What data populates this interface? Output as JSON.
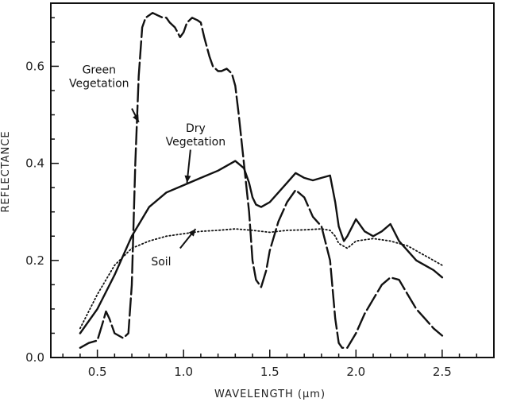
{
  "chart_data": {
    "type": "line",
    "title": "",
    "xlabel": "WAVELENGTH  (µm)",
    "ylabel": "REFLECTANCE",
    "xlim": [
      0.23,
      2.8
    ],
    "ylim": [
      0.0,
      0.73
    ],
    "xticks": [
      0.5,
      1.0,
      1.5,
      2.0,
      2.5
    ],
    "xtick_labels": [
      "0.5",
      "1.0",
      "1.5",
      "2.0",
      "2.5"
    ],
    "yticks": [
      0.0,
      0.2,
      0.4,
      0.6
    ],
    "ytick_labels": [
      "0.0",
      "0.2",
      "0.4",
      "0.6"
    ],
    "grid": false,
    "series": [
      {
        "name": "Green Vegetation",
        "style": "long-dash",
        "x": [
          0.4,
          0.45,
          0.5,
          0.53,
          0.55,
          0.57,
          0.6,
          0.65,
          0.68,
          0.7,
          0.72,
          0.74,
          0.76,
          0.78,
          0.8,
          0.82,
          0.85,
          0.88,
          0.9,
          0.92,
          0.95,
          0.98,
          1.0,
          1.02,
          1.05,
          1.08,
          1.1,
          1.12,
          1.15,
          1.17,
          1.2,
          1.22,
          1.25,
          1.28,
          1.3,
          1.32,
          1.35,
          1.38,
          1.4,
          1.42,
          1.45,
          1.48,
          1.5,
          1.55,
          1.6,
          1.65,
          1.7,
          1.75,
          1.8,
          1.85,
          1.88,
          1.9,
          1.92,
          1.95,
          2.0,
          2.05,
          2.1,
          2.15,
          2.2,
          2.25,
          2.3,
          2.35,
          2.4,
          2.45,
          2.5
        ],
        "y": [
          0.02,
          0.03,
          0.035,
          0.07,
          0.095,
          0.08,
          0.05,
          0.04,
          0.05,
          0.15,
          0.4,
          0.58,
          0.68,
          0.7,
          0.705,
          0.71,
          0.705,
          0.7,
          0.7,
          0.69,
          0.68,
          0.66,
          0.67,
          0.69,
          0.7,
          0.695,
          0.69,
          0.66,
          0.62,
          0.6,
          0.59,
          0.59,
          0.595,
          0.585,
          0.56,
          0.5,
          0.4,
          0.3,
          0.2,
          0.16,
          0.145,
          0.18,
          0.22,
          0.28,
          0.32,
          0.345,
          0.33,
          0.29,
          0.27,
          0.2,
          0.08,
          0.03,
          0.02,
          0.02,
          0.05,
          0.09,
          0.12,
          0.15,
          0.165,
          0.16,
          0.13,
          0.1,
          0.08,
          0.06,
          0.045
        ]
      },
      {
        "name": "Dry Vegetation",
        "style": "solid",
        "x": [
          0.4,
          0.5,
          0.6,
          0.7,
          0.8,
          0.9,
          1.0,
          1.1,
          1.2,
          1.25,
          1.3,
          1.35,
          1.38,
          1.4,
          1.42,
          1.45,
          1.5,
          1.55,
          1.6,
          1.65,
          1.7,
          1.75,
          1.8,
          1.85,
          1.88,
          1.9,
          1.93,
          1.95,
          2.0,
          2.05,
          2.1,
          2.15,
          2.2,
          2.25,
          2.3,
          2.35,
          2.4,
          2.45,
          2.5
        ],
        "y": [
          0.05,
          0.1,
          0.17,
          0.25,
          0.31,
          0.34,
          0.355,
          0.37,
          0.385,
          0.395,
          0.405,
          0.39,
          0.36,
          0.33,
          0.315,
          0.31,
          0.32,
          0.34,
          0.36,
          0.38,
          0.37,
          0.365,
          0.37,
          0.375,
          0.32,
          0.27,
          0.24,
          0.25,
          0.285,
          0.26,
          0.25,
          0.26,
          0.275,
          0.24,
          0.22,
          0.2,
          0.19,
          0.18,
          0.165
        ]
      },
      {
        "name": "Soil",
        "style": "dotted",
        "x": [
          0.4,
          0.5,
          0.6,
          0.7,
          0.8,
          0.9,
          1.0,
          1.1,
          1.2,
          1.3,
          1.4,
          1.5,
          1.6,
          1.7,
          1.8,
          1.85,
          1.88,
          1.9,
          1.95,
          2.0,
          2.1,
          2.2,
          2.3,
          2.4,
          2.5
        ],
        "y": [
          0.06,
          0.13,
          0.19,
          0.225,
          0.24,
          0.25,
          0.255,
          0.26,
          0.262,
          0.265,
          0.262,
          0.258,
          0.262,
          0.263,
          0.265,
          0.262,
          0.25,
          0.235,
          0.225,
          0.24,
          0.245,
          0.24,
          0.23,
          0.21,
          0.19
        ]
      }
    ],
    "annotations": [
      {
        "series": "Green Vegetation",
        "lines": [
          "Green",
          "Vegetation"
        ],
        "text_at": [
          0.51,
          0.585
        ],
        "arrow_from": [
          0.7,
          0.513
        ],
        "arrow_to": [
          0.74,
          0.485
        ]
      },
      {
        "series": "Dry Vegetation",
        "lines": [
          "Dry",
          "Vegetation"
        ],
        "text_at": [
          1.07,
          0.465
        ],
        "arrow_from": [
          1.04,
          0.428
        ],
        "arrow_to": [
          1.02,
          0.36
        ]
      },
      {
        "series": "Soil",
        "lines": [
          "Soil"
        ],
        "text_at": [
          0.87,
          0.19
        ],
        "arrow_from": [
          0.98,
          0.225
        ],
        "arrow_to": [
          1.07,
          0.265
        ]
      }
    ]
  }
}
